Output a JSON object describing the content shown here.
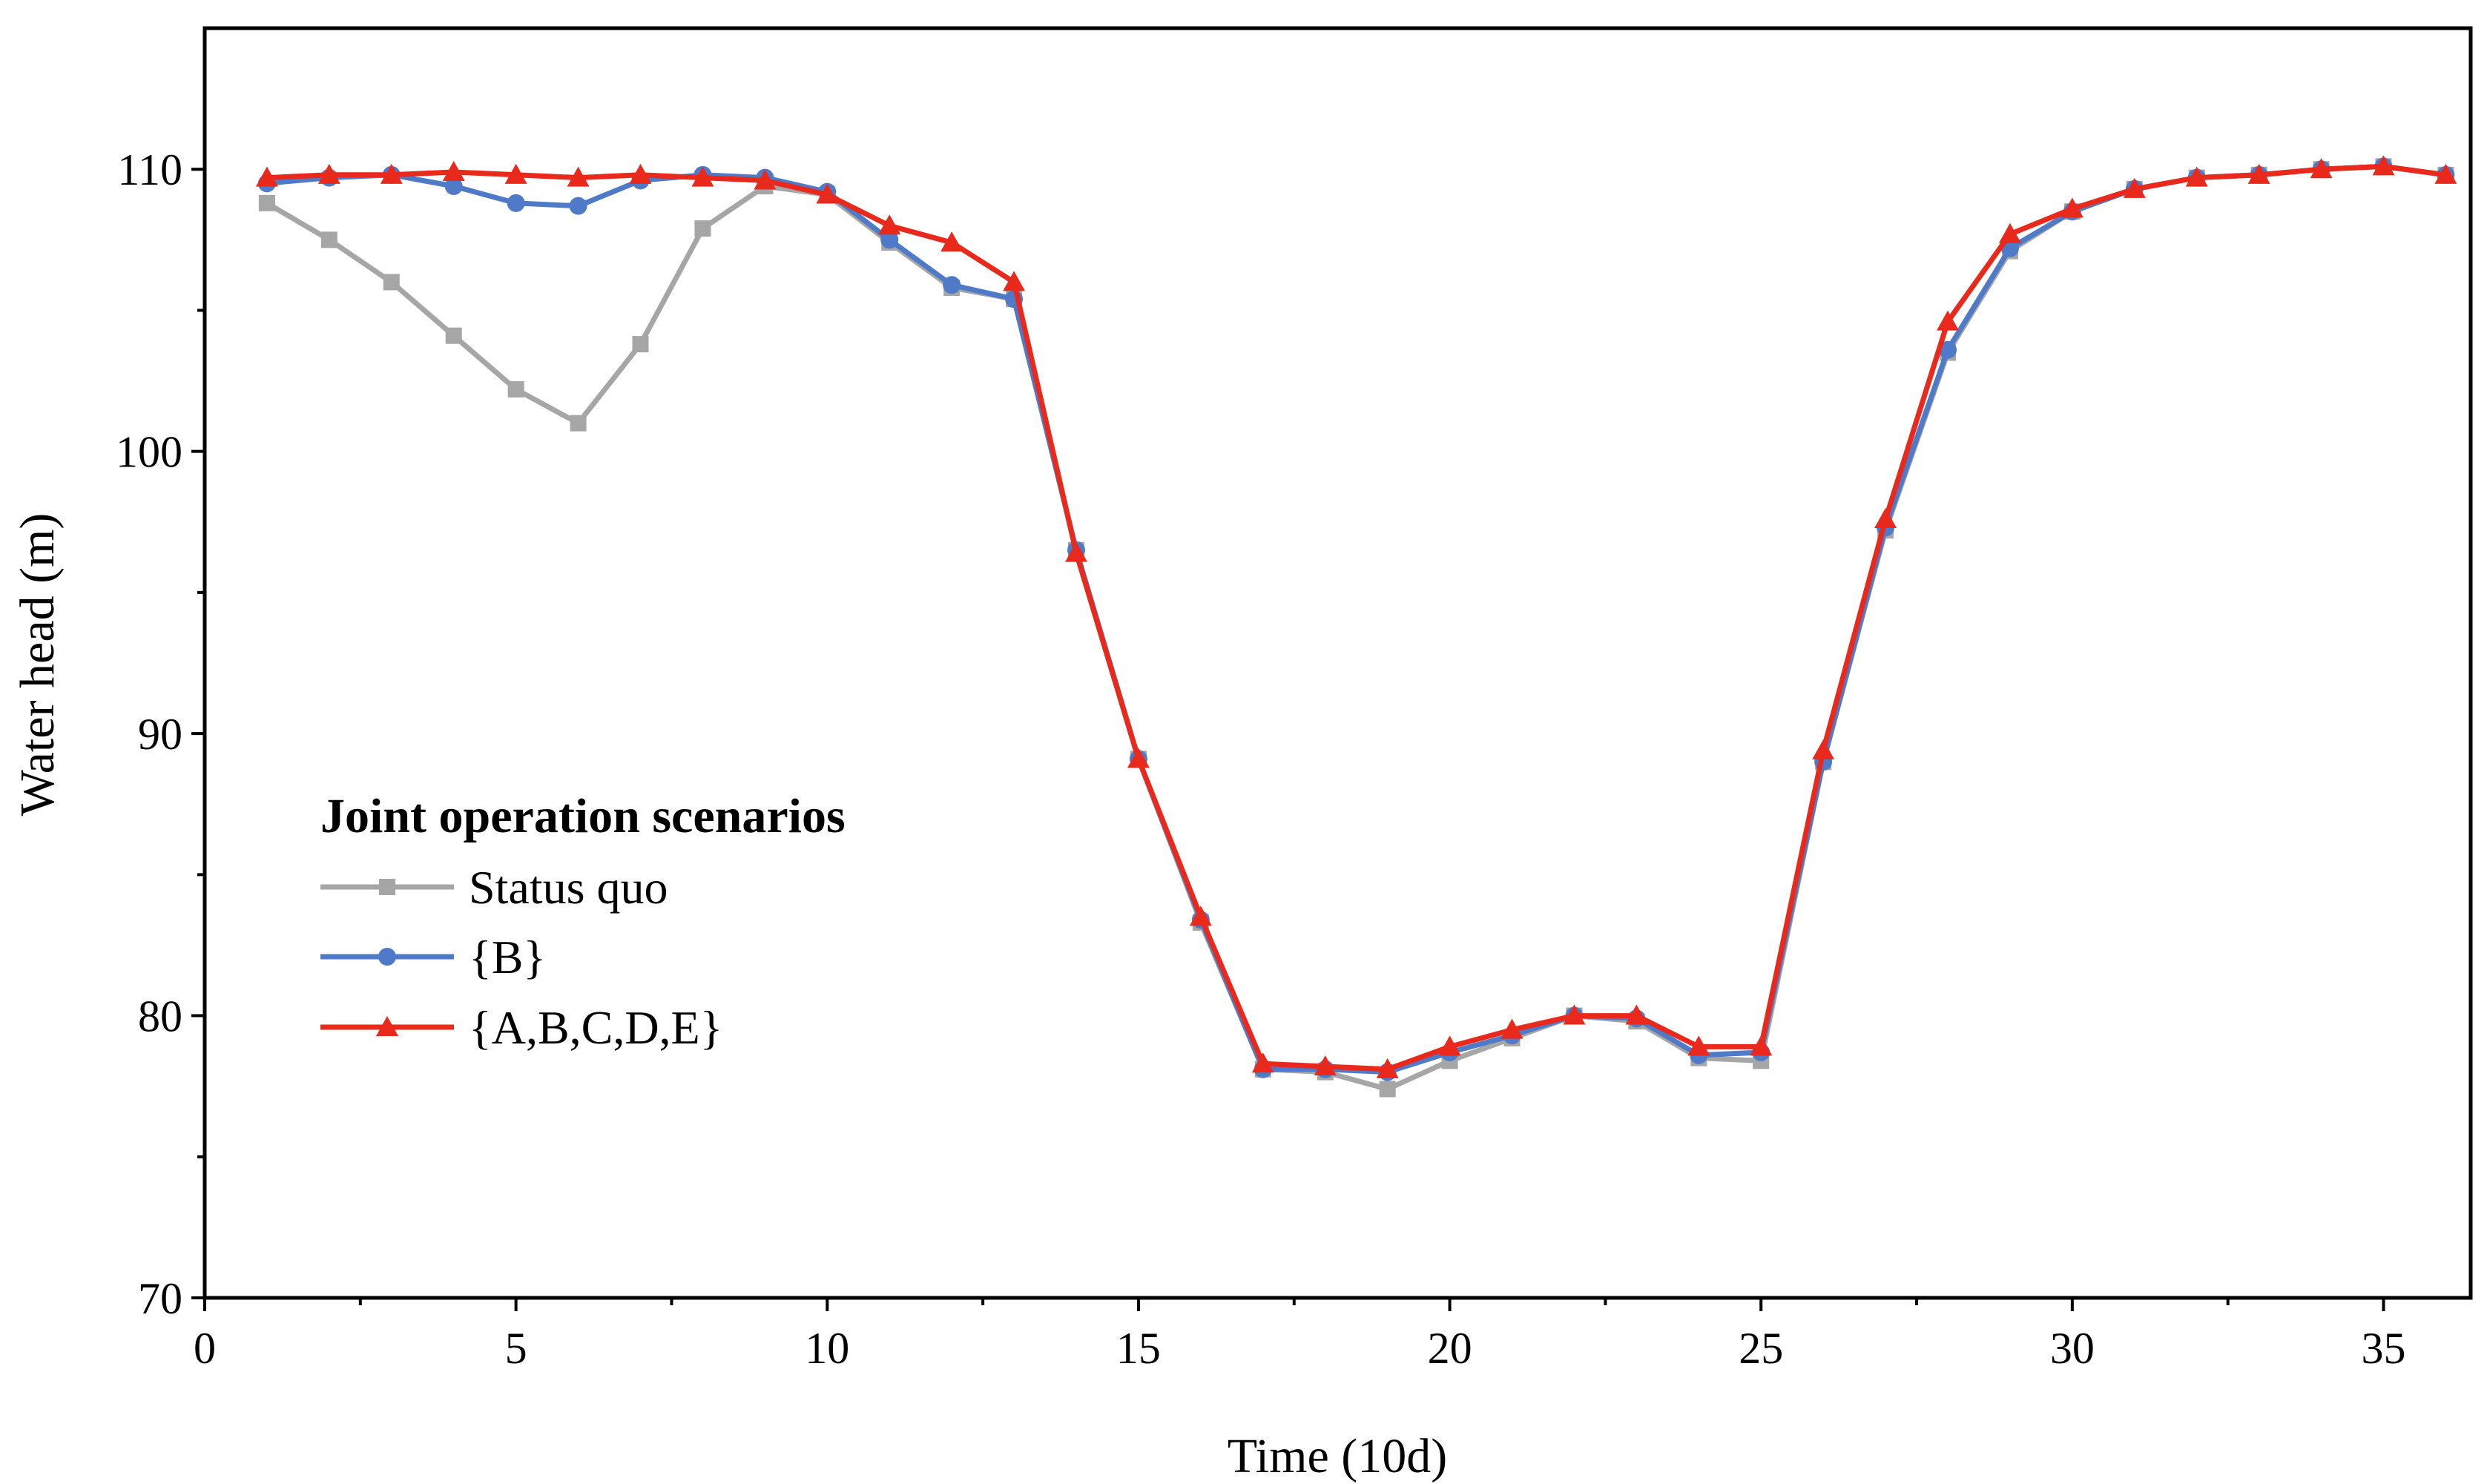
{
  "chart_data": {
    "type": "line",
    "xlabel": "Time (10d)",
    "ylabel": "Water head (m)",
    "xlim": [
      0,
      36.4
    ],
    "ylim": [
      70,
      115
    ],
    "xticks": [
      0,
      5,
      10,
      15,
      20,
      25,
      30,
      35
    ],
    "xticks_minor": [
      2.5,
      7.5,
      12.5,
      17.5,
      22.5,
      27.5,
      32.5
    ],
    "yticks": [
      70,
      80,
      90,
      100,
      110
    ],
    "yticks_minor": [
      75,
      85,
      95,
      105
    ],
    "legend": {
      "title": "Joint operation scenarios",
      "position": "left-center"
    },
    "x": [
      1,
      2,
      3,
      4,
      5,
      6,
      7,
      8,
      9,
      10,
      11,
      12,
      13,
      14,
      15,
      16,
      17,
      18,
      19,
      20,
      21,
      22,
      23,
      24,
      25,
      26,
      27,
      28,
      29,
      30,
      31,
      32,
      33,
      34,
      35,
      36
    ],
    "series": [
      {
        "name": "Status quo",
        "color": "#a6a6a6",
        "marker": "square",
        "values": [
          108.8,
          107.5,
          106.0,
          104.1,
          102.2,
          101.0,
          103.8,
          107.9,
          109.4,
          109.1,
          107.4,
          105.8,
          105.4,
          96.5,
          89.1,
          83.3,
          78.1,
          78.0,
          77.4,
          78.4,
          79.2,
          80.0,
          79.8,
          78.5,
          78.4,
          89.0,
          97.2,
          103.5,
          107.1,
          108.5,
          109.3,
          109.7,
          109.8,
          110.0,
          110.1,
          109.8
        ]
      },
      {
        "name": "{B}",
        "color": "#4e7ac7",
        "marker": "circle",
        "values": [
          109.5,
          109.7,
          109.8,
          109.4,
          108.8,
          108.7,
          109.6,
          109.8,
          109.7,
          109.2,
          107.5,
          105.9,
          105.4,
          96.5,
          89.1,
          83.4,
          78.1,
          78.1,
          78.0,
          78.7,
          79.3,
          80.0,
          79.9,
          78.6,
          78.7,
          89.0,
          97.3,
          103.6,
          107.2,
          108.5,
          109.3,
          109.7,
          109.8,
          110.0,
          110.1,
          109.8
        ]
      },
      {
        "name": "{A,B,C,D,E}",
        "color": "#e8291c",
        "marker": "triangle",
        "values": [
          109.7,
          109.8,
          109.8,
          109.9,
          109.8,
          109.7,
          109.8,
          109.7,
          109.6,
          109.1,
          108.0,
          107.4,
          106.0,
          96.4,
          89.1,
          83.5,
          78.3,
          78.2,
          78.1,
          78.9,
          79.5,
          80.0,
          80.0,
          78.9,
          78.9,
          89.4,
          97.6,
          104.6,
          107.7,
          108.6,
          109.3,
          109.7,
          109.8,
          110.0,
          110.1,
          109.8
        ]
      }
    ]
  }
}
